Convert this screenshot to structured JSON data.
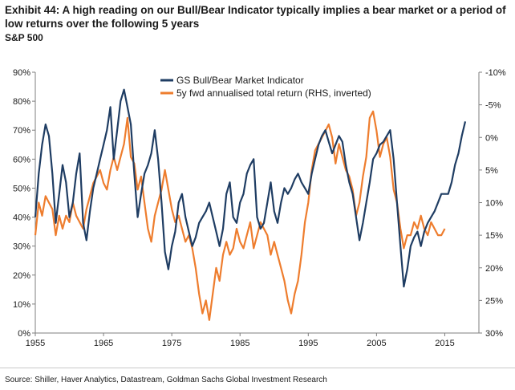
{
  "header": {
    "title": "Exhibit 44: A high reading on our Bull/Bear Indicator typically implies a bear market or a period of low returns over the following 5 years",
    "subtitle": "S&P 500"
  },
  "footer": {
    "source": "Source: Shiller, Haver Analytics, Datastream, Goldman Sachs Global Investment Research"
  },
  "colors": {
    "bull_bear": "#1f3d63",
    "fwd_return": "#ee7d2e"
  },
  "chart_data": {
    "type": "line",
    "title": "",
    "xlabel": "",
    "ylabel": "",
    "x_ticks": [
      "1955",
      "1965",
      "1975",
      "1985",
      "1995",
      "2005",
      "2015"
    ],
    "y_left_ticks": [
      "0%",
      "10%",
      "20%",
      "30%",
      "40%",
      "50%",
      "60%",
      "70%",
      "80%",
      "90%"
    ],
    "y_right_ticks": [
      "-10%",
      "-5%",
      "0%",
      "5%",
      "10%",
      "15%",
      "20%",
      "25%",
      "30%"
    ],
    "xlim": [
      1955,
      2020
    ],
    "ylim_left": [
      0,
      90
    ],
    "ylim_right_inverted": [
      -10,
      30
    ],
    "legend_position": "top-center",
    "grid": false,
    "series": [
      {
        "name": "GS Bull/Bear Market Indicator",
        "axis": "left",
        "x": [
          1955.0,
          1955.5,
          1956.0,
          1956.5,
          1957.0,
          1957.5,
          1958.0,
          1958.5,
          1959.0,
          1959.5,
          1960.0,
          1960.5,
          1961.0,
          1961.5,
          1962.0,
          1962.5,
          1963.0,
          1963.5,
          1964.0,
          1964.5,
          1965.0,
          1965.5,
          1966.0,
          1966.5,
          1967.0,
          1967.5,
          1968.0,
          1968.5,
          1969.0,
          1969.5,
          1970.0,
          1970.5,
          1971.0,
          1971.5,
          1972.0,
          1972.5,
          1973.0,
          1973.5,
          1974.0,
          1974.5,
          1975.0,
          1975.5,
          1976.0,
          1976.5,
          1977.0,
          1977.5,
          1978.0,
          1978.5,
          1979.0,
          1979.5,
          1980.0,
          1980.5,
          1981.0,
          1981.5,
          1982.0,
          1982.5,
          1983.0,
          1983.5,
          1984.0,
          1984.5,
          1985.0,
          1985.5,
          1986.0,
          1986.5,
          1987.0,
          1987.5,
          1988.0,
          1988.5,
          1989.0,
          1989.5,
          1990.0,
          1990.5,
          1991.0,
          1991.5,
          1992.0,
          1992.5,
          1993.0,
          1993.5,
          1994.0,
          1994.5,
          1995.0,
          1995.5,
          1996.0,
          1996.5,
          1997.0,
          1997.5,
          1998.0,
          1998.5,
          1999.0,
          1999.5,
          2000.0,
          2000.5,
          2001.0,
          2001.5,
          2002.0,
          2002.5,
          2003.0,
          2003.5,
          2004.0,
          2004.5,
          2005.0,
          2005.5,
          2006.0,
          2006.5,
          2007.0,
          2007.5,
          2008.0,
          2008.5,
          2009.0,
          2009.5,
          2010.0,
          2010.5,
          2011.0,
          2011.5,
          2012.0,
          2012.5,
          2013.0,
          2013.5,
          2014.0,
          2014.5,
          2015.0,
          2015.5,
          2016.0,
          2016.5,
          2017.0,
          2017.5,
          2018.0
        ],
        "values": [
          40,
          55,
          65,
          72,
          68,
          55,
          38,
          48,
          58,
          52,
          40,
          45,
          55,
          62,
          38,
          32,
          42,
          50,
          55,
          60,
          65,
          70,
          78,
          60,
          70,
          80,
          84,
          78,
          72,
          55,
          40,
          48,
          55,
          58,
          62,
          70,
          60,
          45,
          28,
          22,
          30,
          35,
          45,
          48,
          40,
          35,
          30,
          33,
          38,
          40,
          42,
          45,
          40,
          35,
          30,
          36,
          48,
          52,
          40,
          38,
          45,
          48,
          55,
          58,
          60,
          40,
          36,
          38,
          45,
          52,
          42,
          38,
          45,
          50,
          48,
          50,
          53,
          55,
          52,
          50,
          48,
          55,
          60,
          65,
          68,
          70,
          66,
          62,
          65,
          68,
          66,
          58,
          52,
          48,
          40,
          32,
          38,
          45,
          52,
          60,
          62,
          65,
          66,
          68,
          70,
          60,
          45,
          30,
          16,
          22,
          30,
          33,
          35,
          30,
          35,
          38,
          40,
          42,
          45,
          48,
          48,
          48,
          52,
          58,
          62,
          68,
          73
        ]
      },
      {
        "name": "5y fwd annualised total return (RHS, inverted)",
        "axis": "right",
        "x": [
          1955.0,
          1955.5,
          1956.0,
          1956.5,
          1957.0,
          1957.5,
          1958.0,
          1958.5,
          1959.0,
          1959.5,
          1960.0,
          1960.5,
          1961.0,
          1961.5,
          1962.0,
          1962.5,
          1963.0,
          1963.5,
          1964.0,
          1964.5,
          1965.0,
          1965.5,
          1966.0,
          1966.5,
          1967.0,
          1967.5,
          1968.0,
          1968.5,
          1969.0,
          1969.5,
          1970.0,
          1970.5,
          1971.0,
          1971.5,
          1972.0,
          1972.5,
          1973.0,
          1973.5,
          1974.0,
          1974.5,
          1975.0,
          1975.5,
          1976.0,
          1976.5,
          1977.0,
          1977.5,
          1978.0,
          1978.5,
          1979.0,
          1979.5,
          1980.0,
          1980.5,
          1981.0,
          1981.5,
          1982.0,
          1982.5,
          1983.0,
          1983.5,
          1984.0,
          1984.5,
          1985.0,
          1985.5,
          1986.0,
          1986.5,
          1987.0,
          1987.5,
          1988.0,
          1988.5,
          1989.0,
          1989.5,
          1990.0,
          1990.5,
          1991.0,
          1991.5,
          1992.0,
          1992.5,
          1993.0,
          1993.5,
          1994.0,
          1994.5,
          1995.0,
          1995.5,
          1996.0,
          1996.5,
          1997.0,
          1997.5,
          1998.0,
          1998.5,
          1999.0,
          1999.5,
          2000.0,
          2000.5,
          2001.0,
          2001.5,
          2002.0,
          2002.5,
          2003.0,
          2003.5,
          2004.0,
          2004.5,
          2005.0,
          2005.5,
          2006.0,
          2006.5,
          2007.0,
          2007.5,
          2008.0,
          2008.5,
          2009.0,
          2009.5,
          2010.0,
          2010.5,
          2011.0,
          2011.5,
          2012.0,
          2012.5,
          2013.0,
          2013.5,
          2014.0,
          2014.5,
          2015.0
        ],
        "values": [
          15,
          10,
          12,
          9,
          10,
          11,
          15,
          12,
          14,
          12,
          13,
          10,
          12,
          13,
          14,
          11,
          9,
          7,
          6,
          5,
          7,
          8,
          5,
          3,
          5,
          3,
          1,
          -3,
          3,
          4,
          8,
          6,
          10,
          14,
          16,
          12,
          10,
          8,
          5,
          8,
          11,
          13,
          12,
          14,
          16,
          15,
          17,
          20,
          24,
          27,
          25,
          28,
          24,
          20,
          22,
          18,
          16,
          18,
          17,
          14,
          16,
          17,
          15,
          13,
          17,
          15,
          13,
          14,
          15,
          18,
          16,
          18,
          20,
          22,
          25,
          27,
          24,
          22,
          18,
          13,
          10,
          5,
          2,
          1,
          0,
          -1,
          -2,
          0,
          4,
          1,
          3,
          5,
          6,
          8,
          12,
          10,
          6,
          3,
          -3,
          -4,
          -1,
          3,
          1,
          0,
          3,
          8,
          10,
          14,
          17,
          15,
          15,
          13,
          14,
          12,
          14,
          15,
          13,
          14,
          15,
          15,
          14
        ]
      }
    ]
  }
}
